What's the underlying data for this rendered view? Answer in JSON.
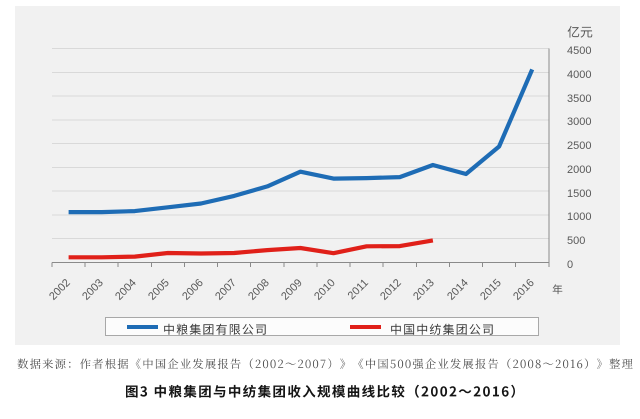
{
  "figure": {
    "type_note": "line chart comparison figure",
    "unit_label": "亿元",
    "year_suffix": "年",
    "source_note": "数据来源：作者根据《中国企业发展报告（2002～2007）》《中国500强企业发展报告（2008～2016）》整理",
    "caption": "图3 中粮集团与中纺集团收入规模曲线比较（2002～2016）"
  },
  "chart_data": {
    "type": "line",
    "title": "图3 中粮集团与中纺集团收入规模曲线比较（2002～2016）",
    "xlabel": "年",
    "ylabel": "亿元",
    "categories": [
      "2002",
      "2003",
      "2004",
      "2005",
      "2006",
      "2007",
      "2008",
      "2009",
      "2010",
      "2011",
      "2012",
      "2013",
      "2014",
      "2015",
      "2016"
    ],
    "series": [
      {
        "name": "中粮集团有限公司",
        "color": "#1e6cb5",
        "values": [
          1060,
          1060,
          1080,
          1160,
          1240,
          1400,
          1600,
          1910,
          1765,
          1775,
          1795,
          2050,
          1860,
          2440,
          4060
        ]
      },
      {
        "name": "中国中纺集团公司",
        "color": "#e02019",
        "values": [
          110,
          110,
          125,
          200,
          190,
          200,
          260,
          305,
          195,
          340,
          345,
          465
        ]
      }
    ],
    "ylim": [
      0,
      4500
    ],
    "y_ticks": [
      0,
      500,
      1000,
      1500,
      2000,
      2500,
      3000,
      3500,
      4000,
      4500
    ],
    "grid": true,
    "legend_position": "bottom"
  },
  "colors": {
    "page_bg": "#ffffff",
    "panel_bg": "#f1f1f1",
    "gridline": "#d9d9d9",
    "axis": "#8a8a8a",
    "tick_label": "#595959",
    "legend_border": "#a8a8a8",
    "legend_bg": "#fcfcfc",
    "legend_text": "#383838",
    "source_text": "#4a4a4a",
    "caption_text": "#151515"
  }
}
